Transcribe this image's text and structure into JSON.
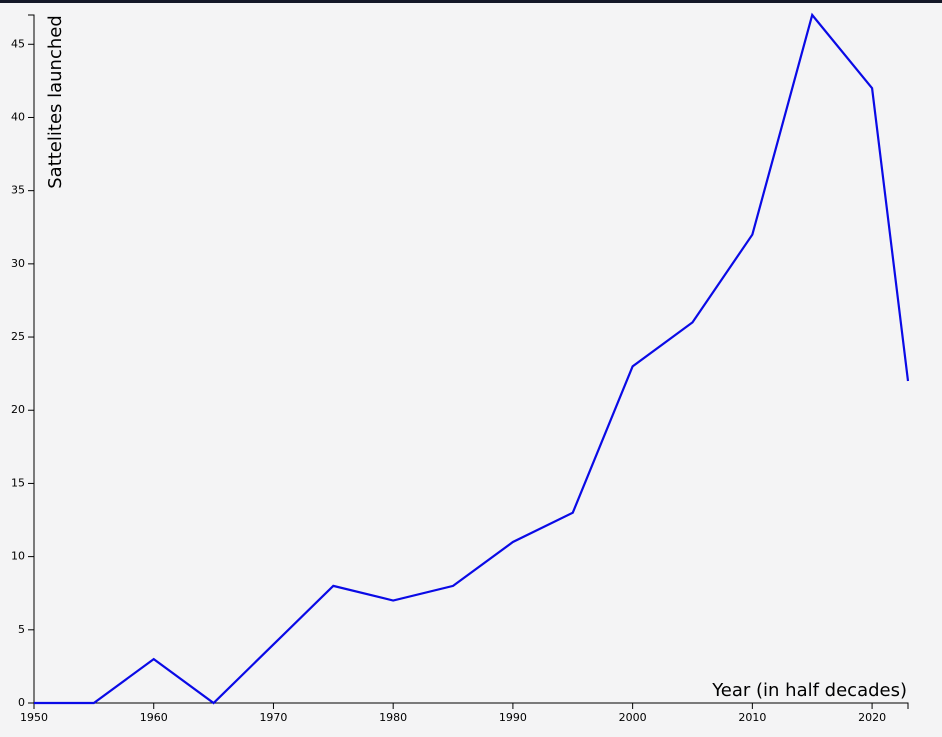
{
  "chart_data": {
    "type": "line",
    "title": "",
    "xlabel": "Year (in half decades)",
    "ylabel": "Sattelites launched",
    "x": [
      1950,
      1955,
      1960,
      1965,
      1970,
      1975,
      1980,
      1985,
      1990,
      1995,
      2000,
      2005,
      2010,
      2015,
      2020,
      2023
    ],
    "series": [
      {
        "name": "",
        "values": [
          0,
          0,
          3,
          0,
          4,
          8,
          7,
          8,
          11,
          13,
          23,
          26,
          32,
          47,
          42,
          22
        ],
        "color": "#0a0ae6"
      }
    ],
    "xlim": [
      1950,
      2023
    ],
    "ylim": [
      0,
      47
    ],
    "x_ticks": [
      1950,
      1960,
      1970,
      1980,
      1990,
      2000,
      2010,
      2020
    ],
    "y_ticks": [
      0,
      5,
      10,
      15,
      20,
      25,
      30,
      35,
      40,
      45
    ],
    "grid": false,
    "legend": "none"
  }
}
